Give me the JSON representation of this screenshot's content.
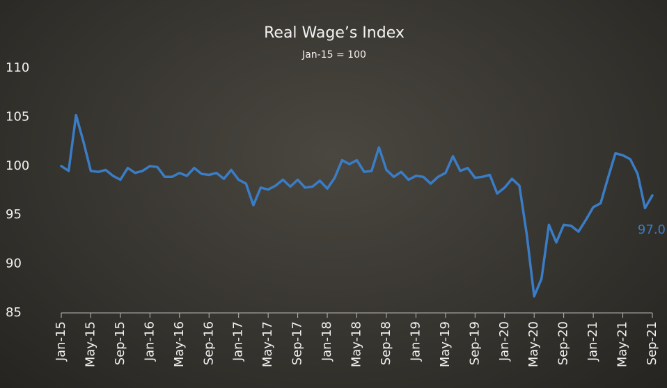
{
  "chart_data": {
    "type": "line",
    "title": "Real Wage’s Index",
    "subtitle": "Jan-15 = 100",
    "categories": [
      "Jan-15",
      null,
      null,
      null,
      "May-15",
      null,
      null,
      null,
      "Sep-15",
      null,
      null,
      null,
      "Jan-16",
      null,
      null,
      null,
      "May-16",
      null,
      null,
      null,
      "Sep-16",
      null,
      null,
      null,
      "Jan-17",
      null,
      null,
      null,
      "May-17",
      null,
      null,
      null,
      "Sep-17",
      null,
      null,
      null,
      "Jan-18",
      null,
      null,
      null,
      "May-18",
      null,
      null,
      null,
      "Sep-18",
      null,
      null,
      null,
      "Jan-19",
      null,
      null,
      null,
      "May-19",
      null,
      null,
      null,
      "Sep-19",
      null,
      null,
      null,
      "Jan-20",
      null,
      null,
      null,
      "May-20",
      null,
      null,
      null,
      "Sep-20",
      null,
      null,
      null,
      "Jan-21",
      null,
      null,
      null,
      "May-21",
      null,
      null,
      null,
      "Sep-21"
    ],
    "values": [
      100.0,
      99.5,
      105.2,
      102.5,
      99.5,
      99.4,
      99.6,
      99.0,
      98.6,
      99.8,
      99.3,
      99.5,
      100.0,
      99.9,
      98.9,
      98.9,
      99.3,
      99.0,
      99.8,
      99.2,
      99.1,
      99.3,
      98.7,
      99.6,
      98.6,
      98.2,
      96.0,
      97.8,
      97.6,
      98.0,
      98.6,
      97.9,
      98.6,
      97.8,
      97.9,
      98.5,
      97.7,
      98.8,
      100.6,
      100.2,
      100.6,
      99.4,
      99.5,
      101.9,
      99.6,
      98.9,
      99.4,
      98.6,
      99.0,
      98.9,
      98.2,
      98.9,
      99.3,
      101.0,
      99.5,
      99.8,
      98.8,
      98.9,
      99.1,
      97.2,
      97.8,
      98.7,
      98.0,
      93.0,
      86.7,
      88.5,
      94.0,
      92.2,
      94.0,
      93.9,
      93.3,
      94.5,
      95.8,
      96.2,
      98.8,
      101.3,
      101.1,
      100.7,
      99.2,
      95.7,
      97.0
    ],
    "value_labels": [
      null,
      null,
      null,
      null,
      null,
      null,
      null,
      null,
      null,
      null,
      null,
      null,
      null,
      null,
      null,
      null,
      null,
      null,
      null,
      null,
      null,
      null,
      null,
      null,
      null,
      null,
      null,
      null,
      null,
      null,
      null,
      null,
      null,
      null,
      null,
      null,
      null,
      null,
      null,
      null,
      null,
      null,
      null,
      null,
      null,
      null,
      null,
      null,
      null,
      null,
      null,
      null,
      null,
      null,
      null,
      null,
      null,
      null,
      null,
      null,
      null,
      null,
      null,
      null,
      null,
      null,
      null,
      null,
      null,
      null,
      null,
      null,
      null,
      null,
      null,
      null,
      null,
      null,
      null,
      null,
      "97.0"
    ],
    "color": "#3a7dc6",
    "ylim": [
      85,
      110
    ],
    "yticks": [
      85,
      90,
      95,
      100,
      105,
      110
    ],
    "grid": false
  }
}
